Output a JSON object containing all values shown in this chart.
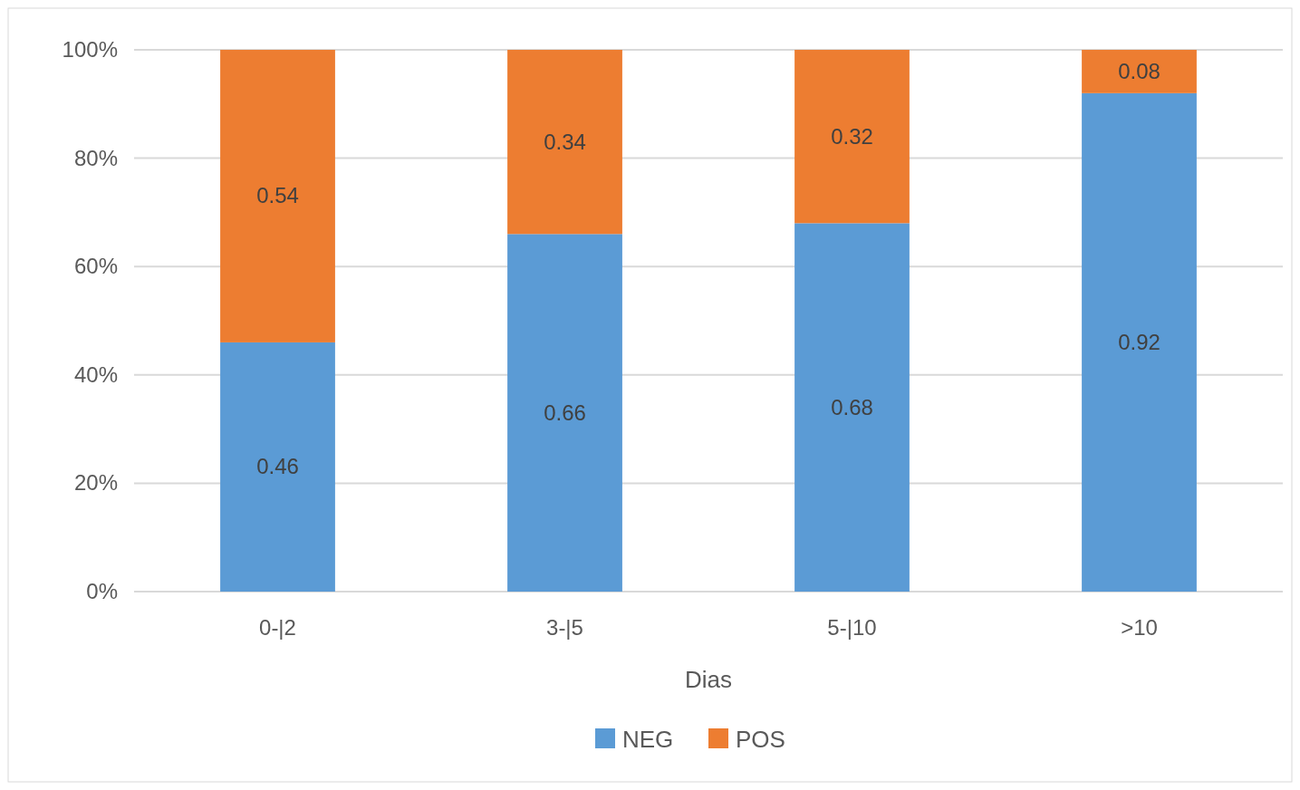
{
  "chart_data": {
    "type": "bar",
    "stacked": true,
    "xlabel": "Dias",
    "categories": [
      "0-|2",
      "3-|5",
      "5-|10",
      ">10"
    ],
    "series": [
      {
        "name": "NEG",
        "color": "#5b9bd5",
        "values": [
          0.46,
          0.66,
          0.68,
          0.92
        ]
      },
      {
        "name": "POS",
        "color": "#ed7d31",
        "values": [
          0.54,
          0.34,
          0.32,
          0.08
        ]
      }
    ],
    "ylim": [
      0,
      1
    ],
    "yticks": [
      {
        "value": 0,
        "label": "0%"
      },
      {
        "value": 0.2,
        "label": "20%"
      },
      {
        "value": 0.4,
        "label": "40%"
      },
      {
        "value": 0.6,
        "label": "60%"
      },
      {
        "value": 0.8,
        "label": "80%"
      },
      {
        "value": 1,
        "label": "100%"
      }
    ],
    "grid": "y",
    "data_labels": true,
    "legend": "bottom"
  }
}
